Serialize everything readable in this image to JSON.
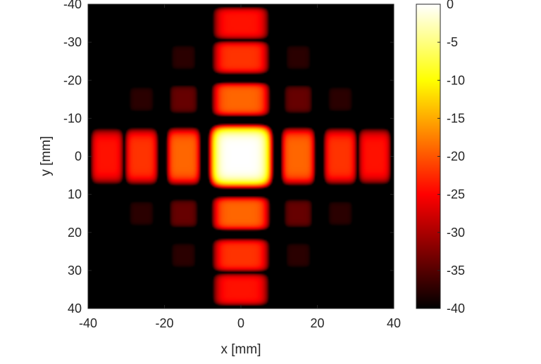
{
  "chart_data": {
    "type": "heatmap",
    "title": "",
    "xlabel": "x [mm]",
    "ylabel": "y [mm]",
    "xlim": [
      -40,
      40
    ],
    "ylim": [
      -40,
      40
    ],
    "y_axis_direction": "top-to-bottom (y increases downward)",
    "x_ticks": [
      -40,
      -20,
      0,
      20,
      40
    ],
    "y_ticks": [
      -40,
      -30,
      -20,
      -10,
      0,
      10,
      20,
      30,
      40
    ],
    "colormap": "hot",
    "colorbar": {
      "range": [
        -40,
        0
      ],
      "ticks": [
        0,
        -5,
        -10,
        -15,
        -20,
        -25,
        -30,
        -35,
        -40
      ],
      "placement": "right"
    },
    "lobe_centers_mm": [
      -35,
      -26,
      -15,
      0,
      15,
      26,
      35
    ],
    "lobe_levels_dB": {
      "row_y0": [
        -24,
        -22,
        -19,
        0,
        -19,
        -22,
        -24
      ],
      "col_x0": [
        -24,
        -22,
        -19,
        0,
        -19,
        -22,
        -24
      ],
      "off_axis_peak_dB": -34
    },
    "colors": {
      "hot_black": "#000000",
      "hot_red": "#ff0000",
      "hot_yellow": "#ffff00",
      "hot_white": "#ffffff",
      "axis": "#262626"
    }
  }
}
